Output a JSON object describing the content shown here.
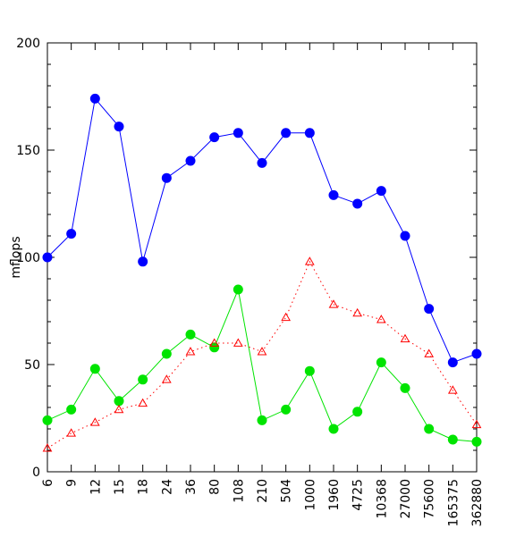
{
  "chart_data": {
    "type": "line",
    "title": "",
    "xlabel": "",
    "ylabel": "mflops",
    "ylim": [
      0,
      200
    ],
    "yticks": [
      0,
      50,
      100,
      150,
      200
    ],
    "grid": false,
    "legend": "none",
    "categories": [
      "6",
      "9",
      "12",
      "15",
      "18",
      "24",
      "36",
      "80",
      "108",
      "210",
      "504",
      "1000",
      "1960",
      "4725",
      "10368",
      "27000",
      "75600",
      "165375",
      "362880"
    ],
    "series": [
      {
        "color": "#0000ff",
        "line_style": "solid",
        "marker": "filled-circle",
        "values": [
          100,
          111,
          174,
          161,
          98,
          137,
          145,
          156,
          158,
          144,
          158,
          158,
          129,
          125,
          131,
          110,
          76,
          51,
          55
        ]
      },
      {
        "color": "#00e400",
        "line_style": "solid",
        "marker": "filled-circle",
        "values": [
          24,
          29,
          48,
          33,
          43,
          55,
          64,
          58,
          85,
          24,
          29,
          47,
          20,
          28,
          51,
          39,
          20,
          15,
          14
        ]
      },
      {
        "color": "#ff0000",
        "line_style": "dotted",
        "marker": "open-triangle",
        "values": [
          11,
          18,
          23,
          29,
          32,
          43,
          56,
          60,
          60,
          56,
          72,
          98,
          78,
          74,
          71,
          62,
          55,
          38,
          22
        ]
      }
    ]
  }
}
